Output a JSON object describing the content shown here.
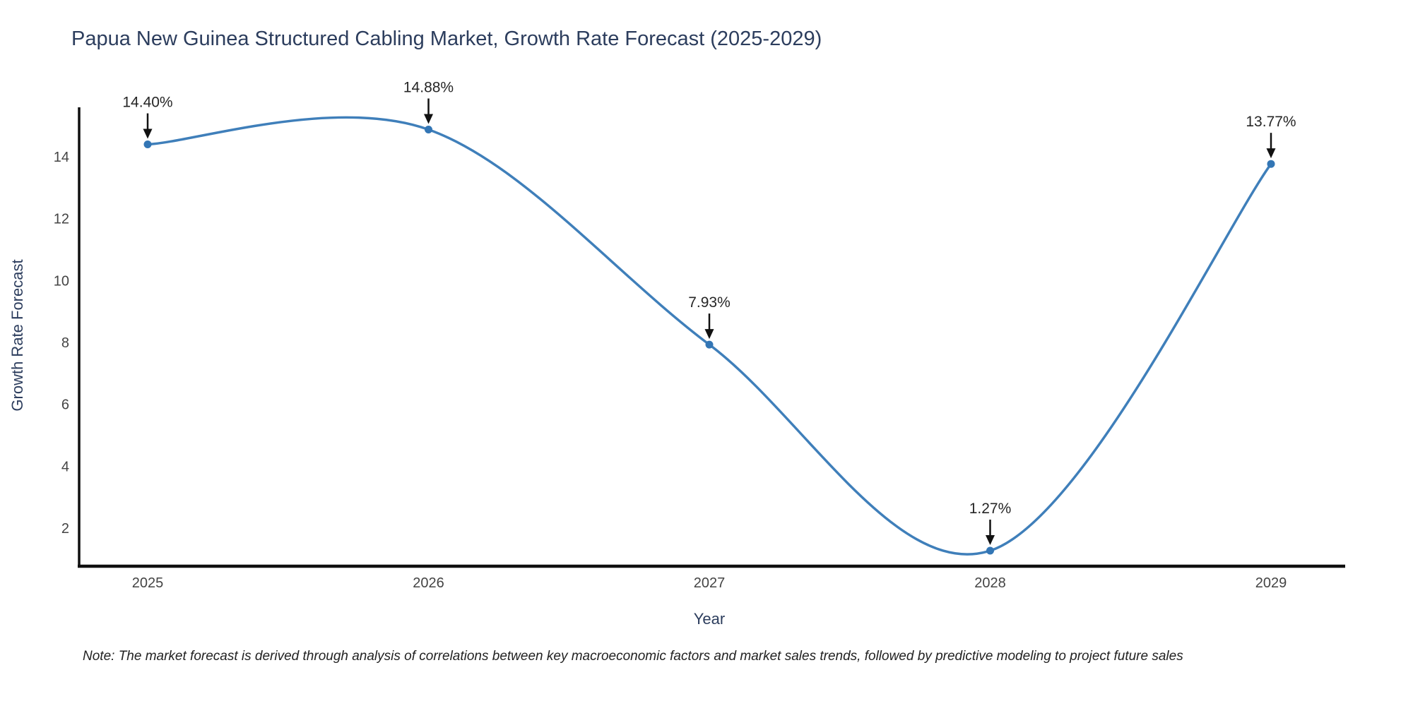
{
  "chart_data": {
    "type": "line",
    "line_shape": "spline",
    "title": "Papua New Guinea Structured Cabling Market, Growth Rate Forecast (2025-2029)",
    "xlabel": "Year",
    "ylabel": "Growth Rate Forecast",
    "categories": [
      "2025",
      "2026",
      "2027",
      "2028",
      "2029"
    ],
    "series": [
      {
        "name": "Growth Rate Forecast",
        "values": [
          14.4,
          14.88,
          7.93,
          1.27,
          13.77
        ]
      }
    ],
    "point_labels": [
      "14.40%",
      "14.88%",
      "7.93%",
      "1.27%",
      "13.77%"
    ],
    "y_ticks": [
      2,
      4,
      6,
      8,
      10,
      12,
      14
    ],
    "ylim": [
      0.8,
      15.5
    ],
    "grid": false,
    "legend_position": "none",
    "markers": true,
    "annotations_arrow": "down",
    "note": "Note: The market forecast is derived through analysis of correlations between key macroeconomic factors and market sales trends, followed by predictive modeling to project future sales",
    "colors": {
      "line": "#3f7fba",
      "marker": "#3376b5",
      "axis": "#0f0f0f",
      "tick_text": "#444444",
      "title_text": "#2c3d5d",
      "annotation_text": "#262626",
      "arrow": "#111111",
      "background": "#ffffff"
    }
  }
}
